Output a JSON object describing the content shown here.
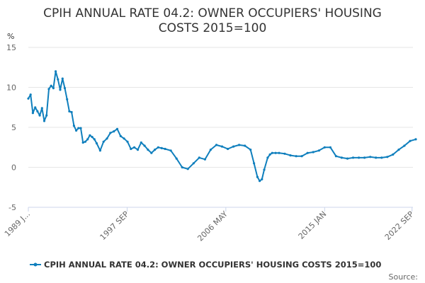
{
  "chart_data": {
    "type": "line",
    "title_line1": "CPIH ANNUAL RATE 04.2: OWNER OCCUPIERS' HOUSING",
    "title_line2": "COSTS 2015=100",
    "ylabel": "%",
    "ylim": [
      -5,
      15
    ],
    "yticks": [
      "15",
      "10",
      "5",
      "0",
      "-5"
    ],
    "xticks": [
      "1989 J...",
      "1997 SEP",
      "2006 MAY",
      "2015 JAN",
      "2022 SEP"
    ],
    "x_range": [
      "1989 JAN",
      "2023 JAN"
    ],
    "grid": true,
    "legend_position": "bottom",
    "series": [
      {
        "name": "CPIH ANNUAL RATE 04.2: OWNER OCCUPIERS' HOUSING COSTS 2015=100",
        "color": "#0f7fbd",
        "x": [
          1989.0,
          1989.2,
          1989.4,
          1989.6,
          1989.8,
          1990.0,
          1990.2,
          1990.4,
          1990.6,
          1990.8,
          1991.0,
          1991.2,
          1991.4,
          1991.6,
          1991.8,
          1992.0,
          1992.2,
          1992.4,
          1992.6,
          1992.8,
          1993.0,
          1993.2,
          1993.4,
          1993.6,
          1993.8,
          1994.0,
          1994.2,
          1994.4,
          1994.6,
          1994.8,
          1995.0,
          1995.3,
          1995.6,
          1995.9,
          1996.2,
          1996.5,
          1996.8,
          1997.1,
          1997.4,
          1997.7,
          1998.0,
          1998.3,
          1998.6,
          1998.9,
          1999.2,
          1999.5,
          1999.8,
          2000.1,
          2000.4,
          2000.7,
          2001.0,
          2001.5,
          2002.0,
          2002.5,
          2003.0,
          2003.5,
          2004.0,
          2004.5,
          2005.0,
          2005.5,
          2006.0,
          2006.5,
          2007.0,
          2007.5,
          2008.0,
          2008.5,
          2008.8,
          2009.1,
          2009.3,
          2009.5,
          2009.7,
          2010.0,
          2010.2,
          2010.4,
          2010.7,
          2011.0,
          2011.5,
          2012.0,
          2012.5,
          2013.0,
          2013.5,
          2014.0,
          2014.5,
          2015.0,
          2015.5,
          2016.0,
          2016.5,
          2017.0,
          2017.5,
          2018.0,
          2018.5,
          2019.0,
          2019.5,
          2020.0,
          2020.5,
          2021.0,
          2021.5,
          2022.0,
          2022.5,
          2023.0
        ],
        "values": [
          8.6,
          9.1,
          6.8,
          7.5,
          7.0,
          6.5,
          7.4,
          5.8,
          6.5,
          9.8,
          10.2,
          9.9,
          12.0,
          11.0,
          9.7,
          11.1,
          9.9,
          8.5,
          7.0,
          6.9,
          5.2,
          4.6,
          4.9,
          4.9,
          3.1,
          3.2,
          3.5,
          4.0,
          3.8,
          3.5,
          3.0,
          2.1,
          3.2,
          3.6,
          4.3,
          4.5,
          4.8,
          3.9,
          3.6,
          3.2,
          2.3,
          2.5,
          2.2,
          3.1,
          2.7,
          2.2,
          1.8,
          2.2,
          2.5,
          2.4,
          2.3,
          2.1,
          1.1,
          0.0,
          -0.2,
          0.5,
          1.2,
          1.0,
          2.2,
          2.8,
          2.6,
          2.3,
          2.6,
          2.8,
          2.7,
          2.2,
          0.5,
          -1.2,
          -1.7,
          -1.5,
          -0.3,
          1.2,
          1.6,
          1.8,
          1.8,
          1.8,
          1.7,
          1.5,
          1.4,
          1.4,
          1.8,
          1.9,
          2.1,
          2.5,
          2.5,
          1.4,
          1.2,
          1.1,
          1.2,
          1.2,
          1.2,
          1.3,
          1.2,
          1.2,
          1.3,
          1.6,
          2.2,
          2.7,
          3.3,
          3.5
        ]
      }
    ]
  },
  "legend": {
    "label": "CPIH ANNUAL RATE 04.2: OWNER OCCUPIERS' HOUSING COSTS 2015=100"
  },
  "source_label": "Source:"
}
